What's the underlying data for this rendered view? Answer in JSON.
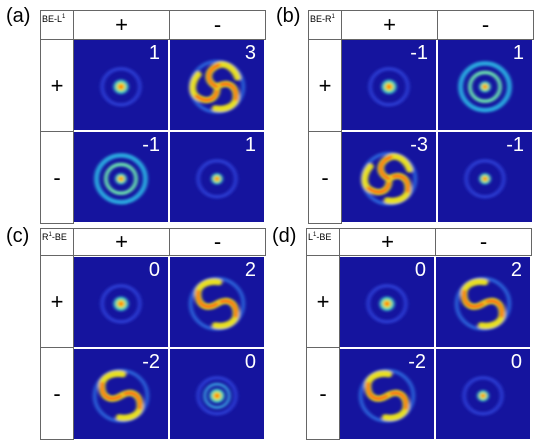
{
  "panels": [
    {
      "letter": "(a)",
      "label_main": "BE-L",
      "label_sub": "1",
      "label_suffix": "",
      "col_signs": [
        "+",
        "-"
      ],
      "row_signs": [
        "+",
        "-"
      ],
      "charges": [
        "1",
        "3",
        "-1",
        "1"
      ],
      "patterns": [
        "dot",
        "spiral3",
        "ring",
        "dot-small"
      ]
    },
    {
      "letter": "(b)",
      "label_main": "BE-R",
      "label_sub": "1",
      "label_suffix": "",
      "col_signs": [
        "+",
        "-"
      ],
      "row_signs": [
        "+",
        "-"
      ],
      "charges": [
        "-1",
        "1",
        "-3",
        "-1"
      ],
      "patterns": [
        "dot",
        "ring",
        "spiral3",
        "dot-small"
      ]
    },
    {
      "letter": "(c)",
      "label_main": "R",
      "label_sub": "1",
      "label_suffix": "-BE",
      "col_signs": [
        "+",
        "-"
      ],
      "row_signs": [
        "+",
        "-"
      ],
      "charges": [
        "0",
        "2",
        "-2",
        "0"
      ],
      "patterns": [
        "dot",
        "spiral2",
        "spiral2",
        "dot-ring"
      ]
    },
    {
      "letter": "(d)",
      "label_main": "L",
      "label_sub": "1",
      "label_suffix": "-BE",
      "col_signs": [
        "+",
        "-"
      ],
      "row_signs": [
        "+",
        "-"
      ],
      "charges": [
        "0",
        "2",
        "-2",
        "0"
      ],
      "patterns": [
        "dot",
        "spiral2",
        "spiral2",
        "dot-small"
      ]
    }
  ]
}
